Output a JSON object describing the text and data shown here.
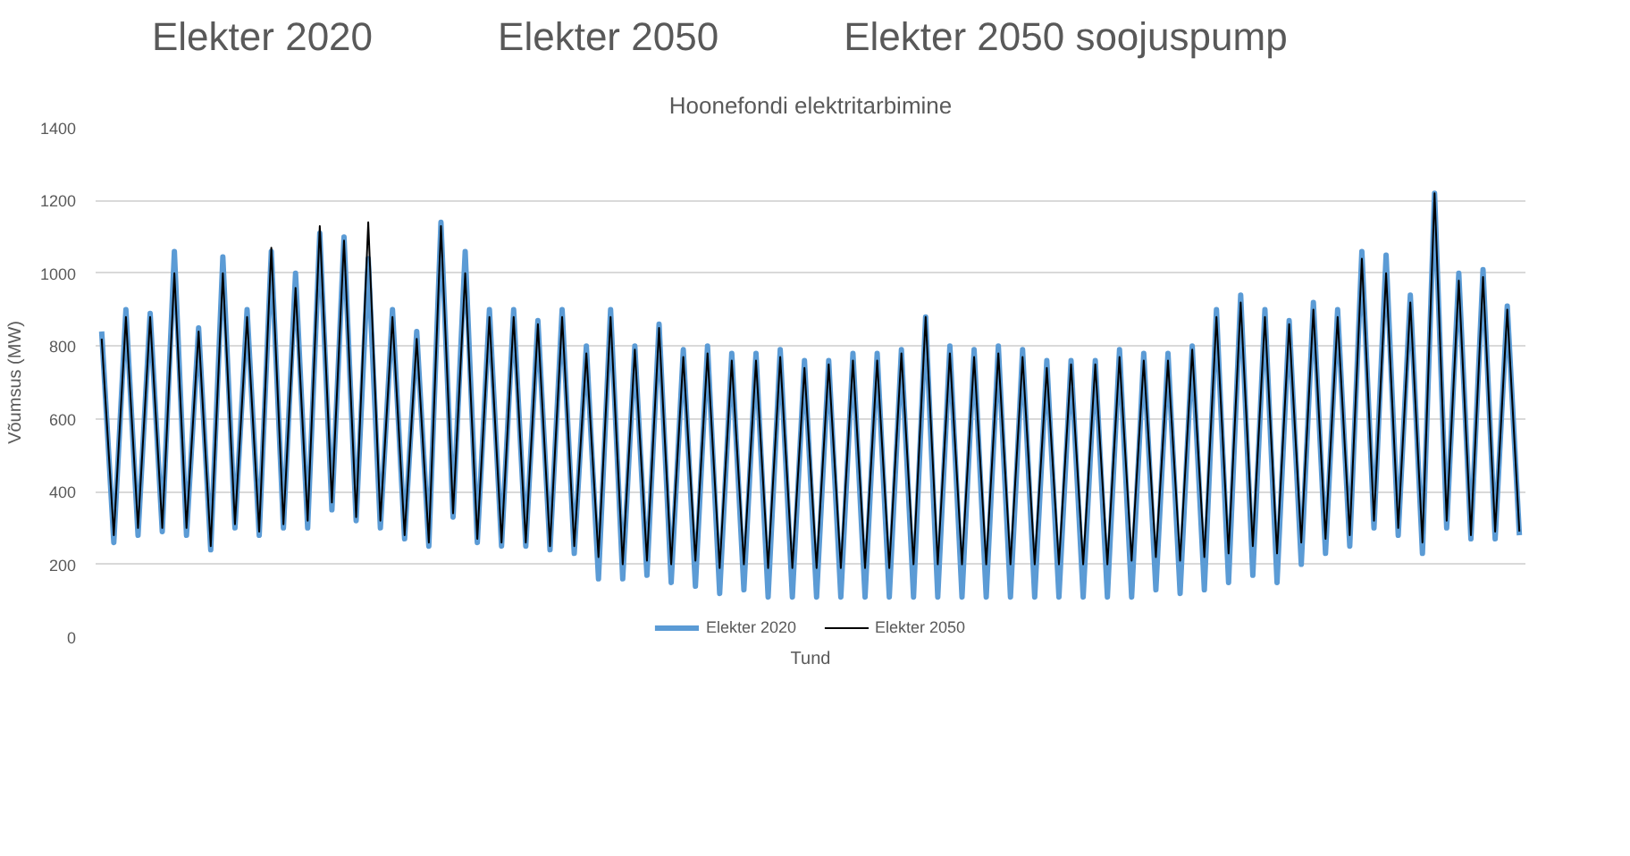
{
  "chart_data": {
    "type": "line",
    "title": "Hoonefondi elektritarbimine",
    "xlabel": "Tund",
    "ylabel": "Võumsus (MW)",
    "annotations": [
      "Elekter 2020",
      "Elekter 2050",
      "Elekter 2050 soojuspump"
    ],
    "categories": [
      null,
      null,
      null,
      null,
      null,
      null,
      null,
      null,
      null,
      null,
      null,
      null,
      null,
      null,
      null,
      null,
      null,
      null,
      null,
      null,
      null,
      null,
      null,
      null,
      null,
      null,
      null,
      null,
      null,
      null,
      null,
      null,
      null,
      null,
      null,
      null,
      null,
      null,
      null,
      null,
      null,
      null,
      null,
      null,
      null,
      null,
      null,
      null,
      null,
      null,
      null,
      null,
      null,
      null,
      null,
      null,
      null,
      null,
      null,
      null,
      null,
      null,
      null,
      null,
      null,
      null,
      null,
      null,
      null,
      null,
      null,
      null,
      null,
      null,
      null,
      null,
      null,
      null,
      null,
      null,
      null,
      null,
      null,
      null,
      null,
      null,
      null,
      null,
      null,
      null,
      null,
      null,
      null,
      null,
      null,
      null,
      null,
      null,
      null,
      null,
      null,
      null,
      null,
      null,
      null,
      null,
      null,
      null,
      null,
      null,
      null,
      null,
      null,
      null,
      null,
      null,
      null,
      null
    ],
    "series": [
      {
        "name": "Elekter 2020",
        "color": "#5b9bd5",
        "values": [
          840,
          260,
          900,
          280,
          890,
          290,
          1060,
          280,
          850,
          240,
          1045,
          300,
          900,
          280,
          1060,
          300,
          1000,
          300,
          1110,
          350,
          1100,
          320,
          1040,
          300,
          900,
          270,
          840,
          250,
          1140,
          330,
          1060,
          260,
          900,
          250,
          900,
          250,
          870,
          240,
          900,
          230,
          800,
          160,
          900,
          160,
          800,
          170,
          860,
          150,
          790,
          140,
          800,
          120,
          780,
          130,
          780,
          110,
          790,
          110,
          760,
          110,
          760,
          110,
          780,
          110,
          780,
          110,
          790,
          110,
          880,
          110,
          800,
          110,
          790,
          110,
          800,
          110,
          790,
          110,
          760,
          110,
          760,
          110,
          760,
          110,
          790,
          110,
          780,
          130,
          780,
          120,
          800,
          130,
          900,
          150,
          940,
          170,
          900,
          150,
          870,
          200,
          920,
          230,
          900,
          250,
          1060,
          300,
          1050,
          280,
          940,
          230,
          1220,
          300,
          1000,
          270,
          1010,
          270,
          910,
          280
        ]
      },
      {
        "name": "Elekter 2050",
        "color": "#000000",
        "values": [
          820,
          280,
          880,
          300,
          880,
          300,
          1000,
          300,
          840,
          250,
          1000,
          310,
          880,
          290,
          1070,
          310,
          960,
          320,
          1130,
          370,
          1090,
          330,
          1140,
          320,
          880,
          280,
          820,
          260,
          1130,
          340,
          1000,
          270,
          880,
          260,
          880,
          260,
          860,
          250,
          880,
          250,
          780,
          220,
          880,
          200,
          790,
          210,
          850,
          200,
          770,
          210,
          780,
          190,
          760,
          200,
          760,
          190,
          770,
          190,
          740,
          190,
          750,
          190,
          760,
          190,
          760,
          190,
          780,
          200,
          880,
          200,
          780,
          200,
          770,
          200,
          780,
          200,
          770,
          200,
          740,
          200,
          750,
          200,
          750,
          200,
          770,
          210,
          760,
          220,
          760,
          210,
          790,
          220,
          880,
          230,
          920,
          250,
          880,
          230,
          860,
          260,
          900,
          270,
          880,
          280,
          1040,
          320,
          1000,
          300,
          920,
          260,
          1220,
          320,
          980,
          280,
          990,
          290,
          900,
          290
        ]
      }
    ],
    "ylim": [
      0,
      1400
    ],
    "yticks": [
      0,
      200,
      400,
      600,
      800,
      1000,
      1200,
      1400
    ],
    "grid": "y",
    "legend": "bottom",
    "line_style": "solid"
  }
}
